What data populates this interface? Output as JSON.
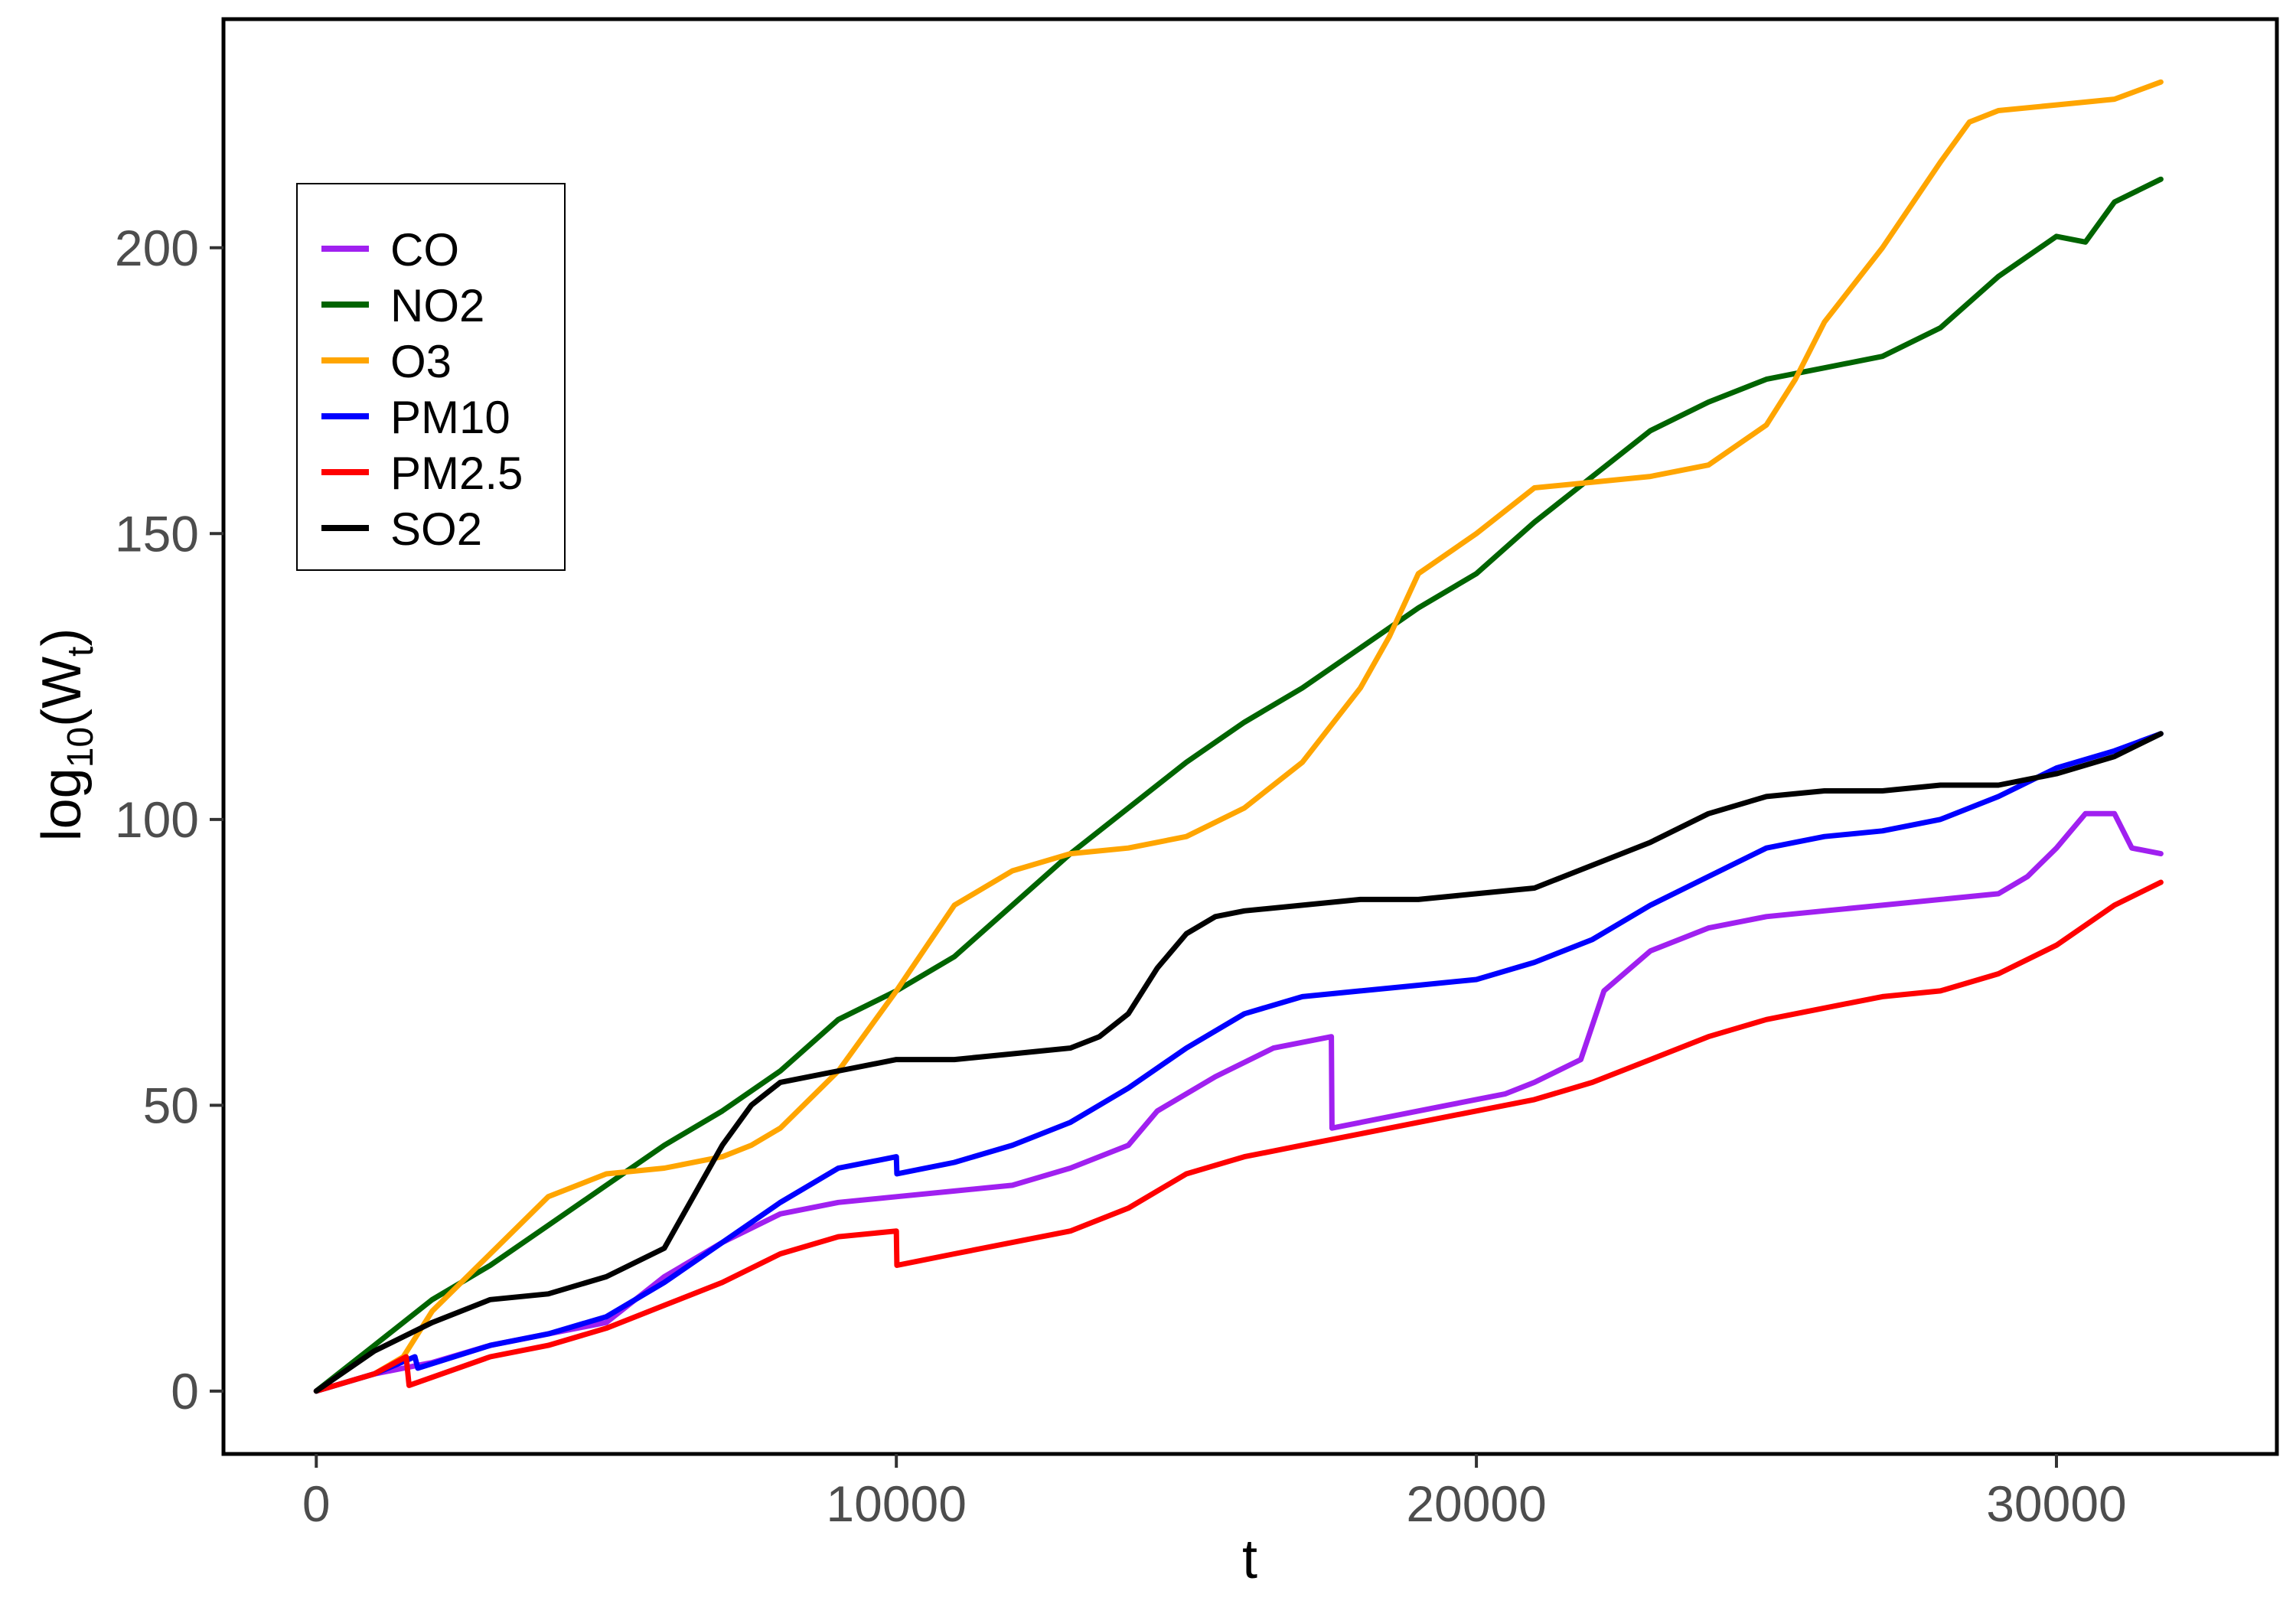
{
  "chart_data": {
    "type": "line",
    "title": "",
    "xlabel": "t",
    "ylabel": {
      "base": "log",
      "sub1": "10",
      "mid": "(W",
      "sub2": "t",
      "end": ")"
    },
    "xlim": [
      -1600,
      33800
    ],
    "ylim": [
      -11,
      240
    ],
    "xticks": [
      0,
      10000,
      20000,
      30000
    ],
    "yticks": [
      0,
      50,
      100,
      150,
      200
    ],
    "grid": false,
    "legend_position": "top-left",
    "series": [
      {
        "name": "CO",
        "color": "#a020f0",
        "points": [
          [
            0,
            0
          ],
          [
            1000,
            3
          ],
          [
            2000,
            5
          ],
          [
            3000,
            8
          ],
          [
            4000,
            10
          ],
          [
            5000,
            12
          ],
          [
            6000,
            20
          ],
          [
            7000,
            26
          ],
          [
            8000,
            31
          ],
          [
            9000,
            33
          ],
          [
            10000,
            34
          ],
          [
            11000,
            35
          ],
          [
            12000,
            36
          ],
          [
            13000,
            39
          ],
          [
            14000,
            43
          ],
          [
            14500,
            49
          ],
          [
            15500,
            55
          ],
          [
            16500,
            60
          ],
          [
            17500,
            62
          ],
          [
            17510,
            46
          ],
          [
            18500,
            48
          ],
          [
            19500,
            50
          ],
          [
            20500,
            52
          ],
          [
            21000,
            54
          ],
          [
            21800,
            58
          ],
          [
            22200,
            70
          ],
          [
            23000,
            77
          ],
          [
            24000,
            81
          ],
          [
            25000,
            83
          ],
          [
            26000,
            84
          ],
          [
            27000,
            85
          ],
          [
            28000,
            86
          ],
          [
            29000,
            87
          ],
          [
            29500,
            90
          ],
          [
            30000,
            95
          ],
          [
            30500,
            101
          ],
          [
            31000,
            101
          ],
          [
            31300,
            95
          ],
          [
            31800,
            94
          ]
        ]
      },
      {
        "name": "NO2",
        "color": "#006400",
        "points": [
          [
            0,
            0
          ],
          [
            1000,
            8
          ],
          [
            2000,
            16
          ],
          [
            3000,
            22
          ],
          [
            4000,
            29
          ],
          [
            5000,
            36
          ],
          [
            6000,
            43
          ],
          [
            7000,
            49
          ],
          [
            8000,
            56
          ],
          [
            9000,
            65
          ],
          [
            10000,
            70
          ],
          [
            11000,
            76
          ],
          [
            12000,
            85
          ],
          [
            13000,
            94
          ],
          [
            14000,
            102
          ],
          [
            15000,
            110
          ],
          [
            16000,
            117
          ],
          [
            17000,
            123
          ],
          [
            18000,
            130
          ],
          [
            19000,
            137
          ],
          [
            20000,
            143
          ],
          [
            21000,
            152
          ],
          [
            22000,
            160
          ],
          [
            23000,
            168
          ],
          [
            24000,
            173
          ],
          [
            25000,
            177
          ],
          [
            26000,
            179
          ],
          [
            27000,
            181
          ],
          [
            28000,
            186
          ],
          [
            29000,
            195
          ],
          [
            30000,
            202
          ],
          [
            30500,
            201
          ],
          [
            31000,
            208
          ],
          [
            31800,
            212
          ]
        ]
      },
      {
        "name": "O3",
        "color": "#ffa500",
        "points": [
          [
            0,
            0
          ],
          [
            1000,
            3
          ],
          [
            1500,
            6
          ],
          [
            2000,
            14
          ],
          [
            3000,
            24
          ],
          [
            4000,
            34
          ],
          [
            5000,
            38
          ],
          [
            6000,
            39
          ],
          [
            7000,
            41
          ],
          [
            7500,
            43
          ],
          [
            8000,
            46
          ],
          [
            9000,
            56
          ],
          [
            10000,
            70
          ],
          [
            11000,
            85
          ],
          [
            12000,
            91
          ],
          [
            13000,
            94
          ],
          [
            14000,
            95
          ],
          [
            15000,
            97
          ],
          [
            16000,
            102
          ],
          [
            17000,
            110
          ],
          [
            18000,
            123
          ],
          [
            18500,
            132
          ],
          [
            19000,
            143
          ],
          [
            20000,
            150
          ],
          [
            21000,
            158
          ],
          [
            22000,
            159
          ],
          [
            23000,
            160
          ],
          [
            24000,
            162
          ],
          [
            25000,
            169
          ],
          [
            25500,
            177
          ],
          [
            26000,
            187
          ],
          [
            27000,
            200
          ],
          [
            28000,
            215
          ],
          [
            28500,
            222
          ],
          [
            29000,
            224
          ],
          [
            30000,
            225
          ],
          [
            31000,
            226
          ],
          [
            31800,
            229
          ]
        ]
      },
      {
        "name": "PM10",
        "color": "#0000ff",
        "points": [
          [
            0,
            0
          ],
          [
            1000,
            3
          ],
          [
            1700,
            6
          ],
          [
            1750,
            4
          ],
          [
            3000,
            8
          ],
          [
            4000,
            10
          ],
          [
            5000,
            13
          ],
          [
            6000,
            19
          ],
          [
            7000,
            26
          ],
          [
            8000,
            33
          ],
          [
            9000,
            39
          ],
          [
            10000,
            41
          ],
          [
            10010,
            38
          ],
          [
            11000,
            40
          ],
          [
            12000,
            43
          ],
          [
            13000,
            47
          ],
          [
            14000,
            53
          ],
          [
            15000,
            60
          ],
          [
            16000,
            66
          ],
          [
            17000,
            69
          ],
          [
            18000,
            70
          ],
          [
            19000,
            71
          ],
          [
            20000,
            72
          ],
          [
            21000,
            75
          ],
          [
            22000,
            79
          ],
          [
            23000,
            85
          ],
          [
            24000,
            90
          ],
          [
            25000,
            95
          ],
          [
            26000,
            97
          ],
          [
            27000,
            98
          ],
          [
            28000,
            100
          ],
          [
            29000,
            104
          ],
          [
            30000,
            109
          ],
          [
            31000,
            112
          ],
          [
            31800,
            115
          ]
        ]
      },
      {
        "name": "PM2.5",
        "color": "#ff0000",
        "points": [
          [
            0,
            0
          ],
          [
            1000,
            3
          ],
          [
            1550,
            6
          ],
          [
            1600,
            1
          ],
          [
            3000,
            6
          ],
          [
            4000,
            8
          ],
          [
            5000,
            11
          ],
          [
            6000,
            15
          ],
          [
            7000,
            19
          ],
          [
            8000,
            24
          ],
          [
            9000,
            27
          ],
          [
            10000,
            28
          ],
          [
            10010,
            22
          ],
          [
            11000,
            24
          ],
          [
            12000,
            26
          ],
          [
            13000,
            28
          ],
          [
            14000,
            32
          ],
          [
            15000,
            38
          ],
          [
            16000,
            41
          ],
          [
            17000,
            43
          ],
          [
            18000,
            45
          ],
          [
            19000,
            47
          ],
          [
            20000,
            49
          ],
          [
            21000,
            51
          ],
          [
            22000,
            54
          ],
          [
            23000,
            58
          ],
          [
            24000,
            62
          ],
          [
            25000,
            65
          ],
          [
            26000,
            67
          ],
          [
            27000,
            69
          ],
          [
            28000,
            70
          ],
          [
            29000,
            73
          ],
          [
            30000,
            78
          ],
          [
            31000,
            85
          ],
          [
            31800,
            89
          ]
        ]
      },
      {
        "name": "SO2",
        "color": "#000000",
        "points": [
          [
            0,
            0
          ],
          [
            1000,
            7
          ],
          [
            2000,
            12
          ],
          [
            3000,
            16
          ],
          [
            4000,
            17
          ],
          [
            5000,
            20
          ],
          [
            6000,
            25
          ],
          [
            6500,
            34
          ],
          [
            7000,
            43
          ],
          [
            7500,
            50
          ],
          [
            8000,
            54
          ],
          [
            9000,
            56
          ],
          [
            10000,
            58
          ],
          [
            11000,
            58
          ],
          [
            12000,
            59
          ],
          [
            13000,
            60
          ],
          [
            13500,
            62
          ],
          [
            14000,
            66
          ],
          [
            14500,
            74
          ],
          [
            15000,
            80
          ],
          [
            15500,
            83
          ],
          [
            16000,
            84
          ],
          [
            17000,
            85
          ],
          [
            18000,
            86
          ],
          [
            19000,
            86
          ],
          [
            20000,
            87
          ],
          [
            21000,
            88
          ],
          [
            22000,
            92
          ],
          [
            23000,
            96
          ],
          [
            24000,
            101
          ],
          [
            25000,
            104
          ],
          [
            26000,
            105
          ],
          [
            27000,
            105
          ],
          [
            28000,
            106
          ],
          [
            29000,
            106
          ],
          [
            30000,
            108
          ],
          [
            31000,
            111
          ],
          [
            31800,
            115
          ]
        ]
      }
    ]
  }
}
